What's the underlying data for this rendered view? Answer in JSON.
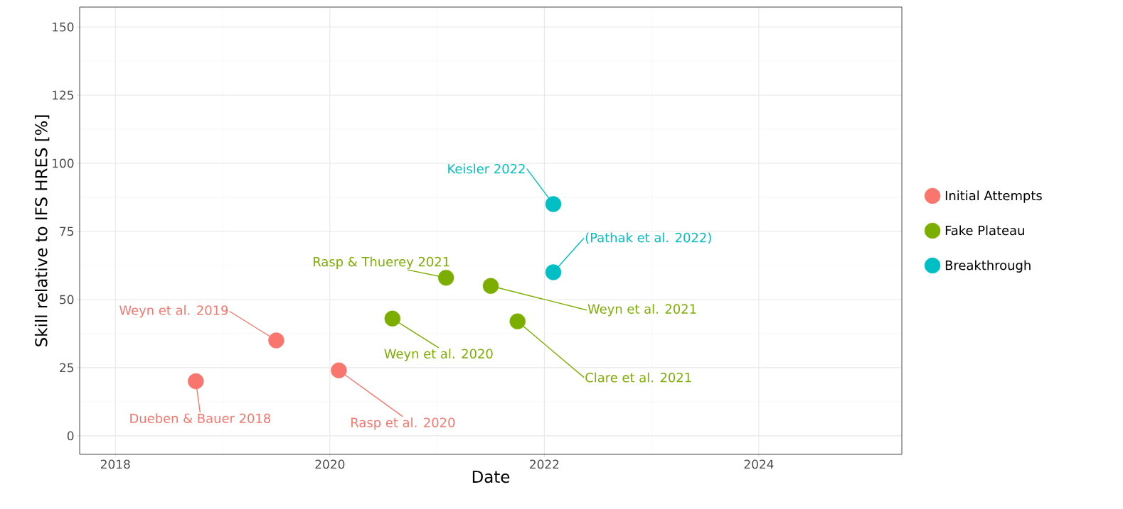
{
  "chart_data": {
    "type": "scatter",
    "xlabel": "Date",
    "ylabel": "Skill relative to IFS HRES [%]",
    "x": [
      "2018-10",
      "2019-07",
      "2020-02",
      "2020-08",
      "2021-02",
      "2021-07",
      "2021-10",
      "2022-02",
      "2022-02"
    ],
    "series": [
      {
        "name": "Initial Attempts",
        "color": "#f8766d",
        "values": [
          20,
          35,
          24,
          null,
          null,
          null,
          null,
          null,
          null
        ]
      },
      {
        "name": "Fake Plateau",
        "color": "#7cae00",
        "values": [
          null,
          null,
          null,
          43,
          58,
          55,
          42,
          null,
          null
        ]
      },
      {
        "name": "Breakthrough",
        "color": "#00bfc4",
        "values": [
          null,
          null,
          null,
          null,
          null,
          null,
          null,
          85,
          60
        ]
      }
    ],
    "annotations": [
      {
        "text": "Dueben & Bauer 2018",
        "x": "2018-10",
        "y": 20
      },
      {
        "text": "Weyn et al. 2019",
        "x": "2019-07",
        "y": 35
      },
      {
        "text": "Rasp et al. 2020",
        "x": "2020-02",
        "y": 24
      },
      {
        "text": "Weyn et al. 2020",
        "x": "2020-08",
        "y": 43
      },
      {
        "text": "Rasp & Thuerey 2021",
        "x": "2021-02",
        "y": 58
      },
      {
        "text": "Weyn et al. 2021",
        "x": "2021-07",
        "y": 55
      },
      {
        "text": "Clare et al. 2021",
        "x": "2021-10",
        "y": 42
      },
      {
        "text": "Keisler 2022",
        "x": "2022-02",
        "y": 85
      },
      {
        "text": "(Pathak et al. 2022)",
        "x": "2022-02",
        "y": 60
      }
    ],
    "xlim": [
      "2017-09",
      "2025-05"
    ],
    "xticks": [
      "2018",
      "2020",
      "2022",
      "2024"
    ],
    "ylim": [
      -6.8,
      157.3
    ],
    "yticks": [
      0,
      25,
      50,
      75,
      100,
      125,
      150
    ],
    "grid": true,
    "legend": "right",
    "marker": "circle"
  }
}
